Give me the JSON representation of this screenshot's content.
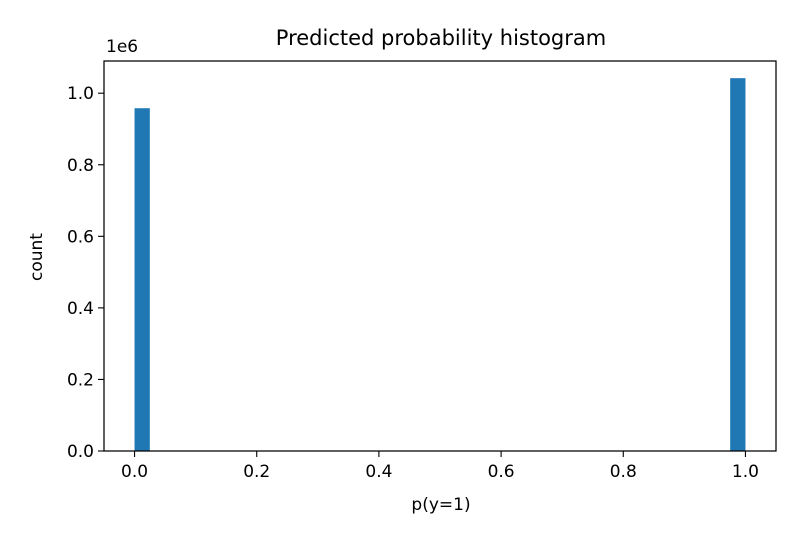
{
  "chart_data": {
    "type": "bar",
    "title": "Predicted probability histogram",
    "xlabel": "p(y=1)",
    "ylabel": "count",
    "y_scale_label": "1e6",
    "xlim": [
      -0.05,
      1.05
    ],
    "ylim": [
      0,
      1.09
    ],
    "x_ticks": [
      0.0,
      0.2,
      0.4,
      0.6,
      0.8,
      1.0
    ],
    "x_tick_labels": [
      "0.0",
      "0.2",
      "0.4",
      "0.6",
      "0.8",
      "1.0"
    ],
    "y_ticks": [
      0.0,
      0.2,
      0.4,
      0.6,
      0.8,
      1.0
    ],
    "y_tick_labels": [
      "0.0",
      "0.2",
      "0.4",
      "0.6",
      "0.8",
      "1.0"
    ],
    "bin_width": 0.025,
    "bins": [
      {
        "x_start": 0.0,
        "x_end": 0.025,
        "value": 0.958
      },
      {
        "x_start": 0.975,
        "x_end": 1.0,
        "value": 1.042
      }
    ],
    "bar_color": "#1f77b4",
    "grid": false,
    "legend": "none"
  }
}
